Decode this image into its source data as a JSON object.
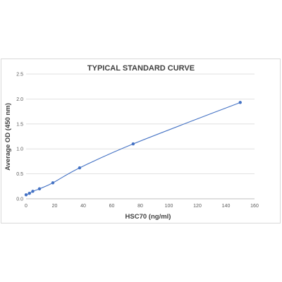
{
  "chart_data": {
    "type": "scatter",
    "title": "TYPICAL STANDARD CURVE",
    "xlabel": "HSC70 (ng/ml)",
    "ylabel": "Average OD (450 nm)",
    "xlim": [
      0,
      160
    ],
    "ylim": [
      0,
      2.5
    ],
    "x_ticks": [
      0,
      20,
      40,
      60,
      80,
      100,
      120,
      140,
      160
    ],
    "y_ticks": [
      0.0,
      0.5,
      1.0,
      1.5,
      2.0,
      2.5
    ],
    "y_tick_labels": [
      "0.0",
      "0.5",
      "1.0",
      "1.5",
      "2.0",
      "2.5"
    ],
    "grid": "horizontal",
    "legend": "none",
    "trendline": true,
    "series": [
      {
        "x": [
          0,
          2.34,
          4.69,
          9.38,
          18.75,
          37.5,
          75,
          150
        ],
        "y": [
          0.08,
          0.11,
          0.15,
          0.2,
          0.32,
          0.62,
          1.1,
          1.93
        ],
        "color": "#4472c4"
      }
    ]
  }
}
